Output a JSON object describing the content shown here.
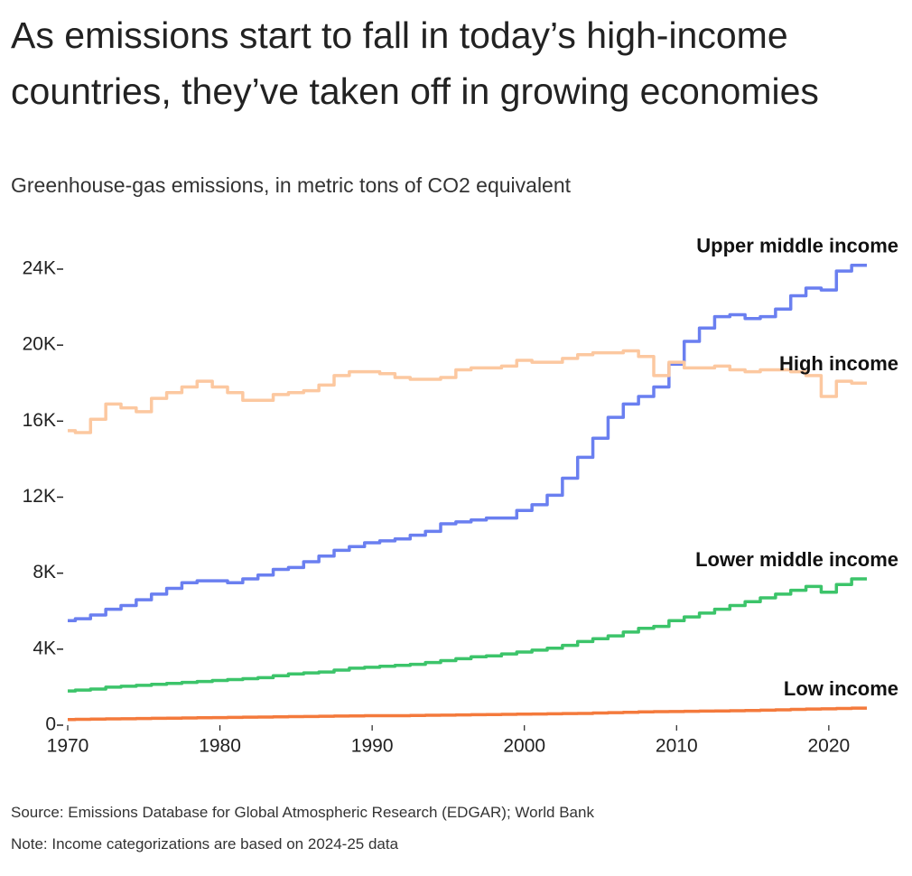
{
  "chart_data": {
    "type": "step-line",
    "title": "As emissions start to fall in today’s high-income countries, they’ve taken off in growing economies",
    "subtitle": "Greenhouse-gas emissions, in metric tons of CO2 equivalent",
    "source": "Source: Emissions Database for Global Atmospheric Research (EDGAR); World Bank",
    "note": "Note: Income categorizations are based on 2024-25 data",
    "x": [
      1970,
      1971,
      1972,
      1973,
      1974,
      1975,
      1976,
      1977,
      1978,
      1979,
      1980,
      1981,
      1982,
      1983,
      1984,
      1985,
      1986,
      1987,
      1988,
      1989,
      1990,
      1991,
      1992,
      1993,
      1994,
      1995,
      1996,
      1997,
      1998,
      1999,
      2000,
      2001,
      2002,
      2003,
      2004,
      2005,
      2006,
      2007,
      2008,
      2009,
      2010,
      2011,
      2012,
      2013,
      2014,
      2015,
      2016,
      2017,
      2018,
      2019,
      2020,
      2021,
      2022
    ],
    "xlim": [
      1970,
      2022.5
    ],
    "xticks": [
      1970,
      1980,
      1990,
      2000,
      2010,
      2020
    ],
    "ylim": [
      0,
      24000
    ],
    "yticks": [
      0,
      {
        "value": 4000,
        "label": "4K"
      },
      {
        "value": 8000,
        "label": "8K"
      },
      {
        "value": 12000,
        "label": "12K"
      },
      {
        "value": 16000,
        "label": "16K"
      },
      {
        "value": 20000,
        "label": "20K"
      },
      {
        "value": 24000,
        "label": "24K"
      }
    ],
    "series": [
      {
        "name": "Upper middle income",
        "color": "#6a7ff0",
        "values": [
          5500,
          5600,
          5800,
          6100,
          6300,
          6600,
          6900,
          7200,
          7500,
          7600,
          7600,
          7500,
          7700,
          7900,
          8200,
          8300,
          8600,
          8900,
          9200,
          9400,
          9600,
          9700,
          9800,
          10000,
          10200,
          10600,
          10700,
          10800,
          10900,
          10900,
          11300,
          11600,
          12100,
          13000,
          14100,
          15100,
          16200,
          16900,
          17300,
          17800,
          19000,
          20200,
          20900,
          21500,
          21600,
          21400,
          21500,
          21900,
          22600,
          23000,
          22900,
          23900,
          24200
        ]
      },
      {
        "name": "High income",
        "color": "#fcc8a0",
        "values": [
          15500,
          15400,
          16100,
          16900,
          16700,
          16500,
          17200,
          17500,
          17800,
          18100,
          17800,
          17500,
          17100,
          17100,
          17400,
          17500,
          17600,
          17900,
          18400,
          18600,
          18600,
          18500,
          18300,
          18200,
          18200,
          18300,
          18700,
          18800,
          18800,
          18900,
          19200,
          19100,
          19100,
          19300,
          19500,
          19600,
          19600,
          19700,
          19400,
          18400,
          19100,
          18800,
          18800,
          18900,
          18700,
          18600,
          18700,
          18700,
          18600,
          18400,
          17300,
          18100,
          18000
        ]
      },
      {
        "name": "Lower middle income",
        "color": "#3cc46a",
        "values": [
          1800,
          1850,
          1900,
          2000,
          2050,
          2100,
          2150,
          2200,
          2250,
          2300,
          2350,
          2400,
          2450,
          2500,
          2600,
          2700,
          2750,
          2800,
          2900,
          3000,
          3050,
          3100,
          3150,
          3200,
          3300,
          3400,
          3500,
          3600,
          3650,
          3750,
          3850,
          3950,
          4050,
          4200,
          4400,
          4550,
          4700,
          4900,
          5100,
          5200,
          5500,
          5700,
          5900,
          6100,
          6300,
          6500,
          6700,
          6900,
          7100,
          7300,
          7000,
          7400,
          7700
        ]
      },
      {
        "name": "Low income",
        "color": "#f47a3c",
        "values": [
          300,
          310,
          320,
          330,
          340,
          350,
          360,
          370,
          380,
          390,
          400,
          410,
          420,
          430,
          440,
          450,
          460,
          470,
          480,
          490,
          500,
          500,
          500,
          510,
          520,
          530,
          540,
          550,
          560,
          570,
          580,
          590,
          600,
          610,
          620,
          640,
          660,
          680,
          700,
          710,
          720,
          730,
          740,
          750,
          760,
          770,
          790,
          810,
          830,
          850,
          860,
          880,
          900
        ]
      }
    ]
  }
}
